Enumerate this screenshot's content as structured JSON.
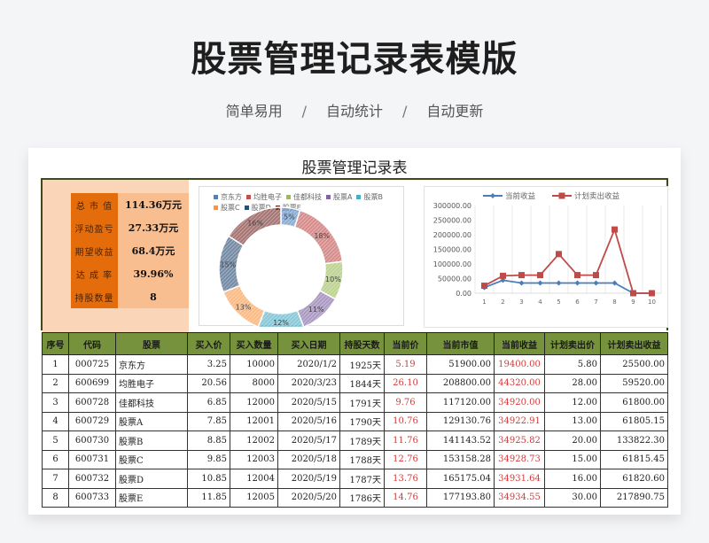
{
  "hero": {
    "title": "股票管理记录表模版",
    "tags": [
      "简单易用",
      "自动统计",
      "自动更新"
    ],
    "separator": "/"
  },
  "sheet": {
    "title": "股票管理记录表"
  },
  "summary": {
    "rows": [
      {
        "label": "总 市 值",
        "value": "114.36万元"
      },
      {
        "label": "浮动盈亏",
        "value": "27.33万元"
      },
      {
        "label": "期望收益",
        "value": "68.4万元"
      },
      {
        "label": "达 成 率",
        "value": "39.96%"
      },
      {
        "label": "持股数量",
        "value": "8"
      }
    ]
  },
  "colors": {
    "header_green": "#76923c",
    "label_orange": "#e46c0a",
    "value_orange": "#f9be8f",
    "panel_peach": "#fbd5b8",
    "profit_red": "#d33b3b",
    "line_blue": "#4a7ebb",
    "line_red": "#be4b48"
  },
  "chart_data": [
    {
      "type": "pie",
      "subtype": "donut",
      "title": "",
      "legend_position": "top",
      "categories": [
        "京东方",
        "均胜电子",
        "佳都科技",
        "股票A",
        "股票B",
        "股票C",
        "股票D",
        "股票E"
      ],
      "values": [
        5,
        18,
        10,
        11,
        12,
        13,
        15,
        16
      ],
      "labels": [
        "5%",
        "18%",
        "10%",
        "11%",
        "12%",
        "13%",
        "15%",
        "16%"
      ],
      "colors": [
        "#4f81bd",
        "#c0504d",
        "#9bbb59",
        "#8064a2",
        "#4bacc6",
        "#f79646",
        "#2c4d75",
        "#772c2a"
      ]
    },
    {
      "type": "line",
      "title": "",
      "legend_position": "top",
      "x": [
        1,
        2,
        3,
        4,
        5,
        6,
        7,
        8,
        9,
        10
      ],
      "series": [
        {
          "name": "当前收益",
          "values": [
            19400.0,
            44320.0,
            34920.0,
            34922.91,
            34925.82,
            34928.73,
            34931.64,
            34934.55,
            0,
            0
          ],
          "color": "#4a7ebb",
          "marker": "diamond"
        },
        {
          "name": "计划卖出收益",
          "values": [
            25500.0,
            59520.0,
            61800.0,
            61805.15,
            133822.3,
            61815.45,
            61820.6,
            217890.75,
            0,
            0
          ],
          "color": "#be4b48",
          "marker": "square"
        }
      ],
      "yticks": [
        "0.00",
        "50000.00",
        "100000.00",
        "150000.00",
        "200000.00",
        "250000.00",
        "300000.00"
      ],
      "ylim": [
        0,
        300000
      ],
      "grid": "vertical",
      "xlabel": "",
      "ylabel": ""
    }
  ],
  "table": {
    "headers": [
      "序号",
      "代码",
      "股票",
      "买入价",
      "买入数量",
      "买入日期",
      "持股天数",
      "当前价",
      "当前市值",
      "当前收益",
      "计划卖出价",
      "计划卖出收益"
    ],
    "rows": [
      [
        "1",
        "000725",
        "京东方",
        "3.25",
        "10000",
        "2020/1/2",
        "1925天",
        "5.19",
        "51900.00",
        "19400.00",
        "5.80",
        "25500.00"
      ],
      [
        "2",
        "600699",
        "均胜电子",
        "20.56",
        "8000",
        "2020/3/23",
        "1844天",
        "26.10",
        "208800.00",
        "44320.00",
        "28.00",
        "59520.00"
      ],
      [
        "3",
        "600728",
        "佳都科技",
        "6.85",
        "12000",
        "2020/5/15",
        "1791天",
        "9.76",
        "117120.00",
        "34920.00",
        "12.00",
        "61800.00"
      ],
      [
        "4",
        "600729",
        "股票A",
        "7.85",
        "12001",
        "2020/5/16",
        "1790天",
        "10.76",
        "129130.76",
        "34922.91",
        "13.00",
        "61805.15"
      ],
      [
        "5",
        "600730",
        "股票B",
        "8.85",
        "12002",
        "2020/5/17",
        "1789天",
        "11.76",
        "141143.52",
        "34925.82",
        "20.00",
        "133822.30"
      ],
      [
        "6",
        "600731",
        "股票C",
        "9.85",
        "12003",
        "2020/5/18",
        "1788天",
        "12.76",
        "153158.28",
        "34928.73",
        "15.00",
        "61815.45"
      ],
      [
        "7",
        "600732",
        "股票D",
        "10.85",
        "12004",
        "2020/5/19",
        "1787天",
        "13.76",
        "165175.04",
        "34931.64",
        "16.00",
        "61820.60"
      ],
      [
        "8",
        "600733",
        "股票E",
        "11.85",
        "12005",
        "2020/5/20",
        "1786天",
        "14.76",
        "177193.80",
        "34934.55",
        "30.00",
        "217890.75"
      ]
    ]
  }
}
